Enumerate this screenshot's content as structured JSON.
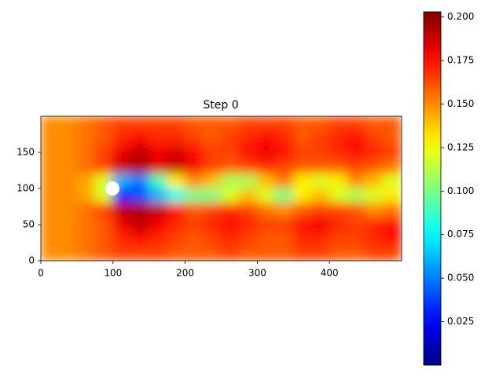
{
  "chart_data": {
    "type": "heatmap",
    "title": "Step 0",
    "xlim": [
      0,
      500
    ],
    "ylim": [
      0,
      200
    ],
    "xticks": [
      0,
      100,
      200,
      300,
      400
    ],
    "yticks": [
      0,
      50,
      100,
      150
    ],
    "colormap": "jet",
    "z": [
      [
        0.15,
        0.15,
        0.155,
        0.16,
        0.165,
        0.165,
        0.165,
        0.165,
        0.16,
        0.16,
        0.16,
        0.165,
        0.165,
        0.165,
        0.16,
        0.16,
        0.165,
        0.165,
        0.16,
        0.16
      ],
      [
        0.15,
        0.15,
        0.155,
        0.16,
        0.17,
        0.175,
        0.17,
        0.17,
        0.165,
        0.16,
        0.165,
        0.17,
        0.175,
        0.17,
        0.16,
        0.165,
        0.17,
        0.175,
        0.165,
        0.16
      ],
      [
        0.15,
        0.15,
        0.155,
        0.165,
        0.18,
        0.19,
        0.18,
        0.185,
        0.175,
        0.165,
        0.165,
        0.175,
        0.18,
        0.175,
        0.165,
        0.165,
        0.17,
        0.175,
        0.17,
        0.165
      ],
      [
        0.15,
        0.15,
        0.155,
        0.165,
        0.19,
        0.195,
        0.185,
        0.19,
        0.18,
        0.165,
        0.16,
        0.165,
        0.17,
        0.165,
        0.16,
        0.16,
        0.16,
        0.165,
        0.16,
        0.155
      ],
      [
        0.15,
        0.15,
        0.145,
        0.12,
        0.06,
        0.05,
        0.09,
        0.13,
        0.15,
        0.14,
        0.11,
        0.11,
        0.14,
        0.155,
        0.13,
        0.12,
        0.13,
        0.15,
        0.14,
        0.12
      ],
      [
        0.15,
        0.15,
        0.145,
        0.12,
        0.03,
        0.04,
        0.06,
        0.08,
        0.1,
        0.1,
        0.12,
        0.14,
        0.12,
        0.1,
        0.13,
        0.14,
        0.12,
        0.11,
        0.12,
        0.13
      ],
      [
        0.15,
        0.15,
        0.155,
        0.165,
        0.19,
        0.195,
        0.19,
        0.175,
        0.16,
        0.165,
        0.17,
        0.165,
        0.155,
        0.15,
        0.16,
        0.165,
        0.165,
        0.16,
        0.15,
        0.155
      ],
      [
        0.15,
        0.15,
        0.155,
        0.16,
        0.18,
        0.19,
        0.18,
        0.17,
        0.165,
        0.17,
        0.175,
        0.17,
        0.165,
        0.165,
        0.175,
        0.18,
        0.17,
        0.165,
        0.17,
        0.175
      ],
      [
        0.15,
        0.15,
        0.155,
        0.16,
        0.17,
        0.175,
        0.17,
        0.165,
        0.16,
        0.165,
        0.17,
        0.165,
        0.16,
        0.16,
        0.17,
        0.17,
        0.165,
        0.165,
        0.17,
        0.175
      ],
      [
        0.15,
        0.15,
        0.155,
        0.16,
        0.165,
        0.165,
        0.165,
        0.16,
        0.16,
        0.16,
        0.165,
        0.16,
        0.16,
        0.16,
        0.165,
        0.165,
        0.16,
        0.16,
        0.165,
        0.165
      ]
    ],
    "colorbar": {
      "clim": [
        0,
        0.203
      ],
      "ticks": [
        0.025,
        {
          "value": 0.05,
          "label": "0.050"
        },
        0.075,
        {
          "value": 0.1,
          "label": "0.100"
        },
        0.125,
        {
          "value": 0.15,
          "label": "0.150"
        },
        0.175,
        {
          "value": 0.2,
          "label": "0.200"
        }
      ]
    }
  }
}
